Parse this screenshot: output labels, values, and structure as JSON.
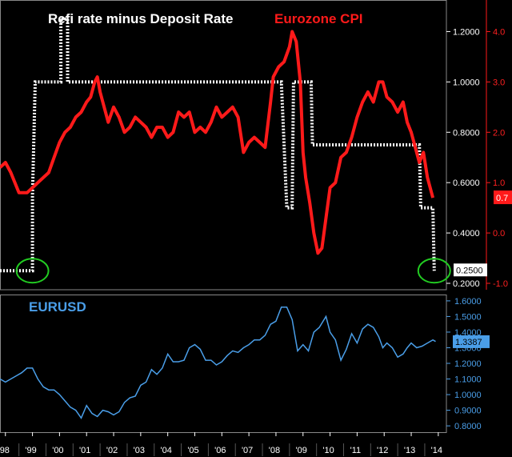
{
  "colors": {
    "background": "#000000",
    "refi": "#ffffff",
    "cpi": "#ff1a1a",
    "eurusd": "#4a9ee8",
    "highlight": "#22cc22",
    "frame": "#888888"
  },
  "chart_data": [
    {
      "type": "line",
      "title": "",
      "series": [
        {
          "name": "Refi rate minus Deposit Rate",
          "axis": "left",
          "style": "dotted",
          "points": [
            [
              1997.8,
              0.25
            ],
            [
              1999.0,
              0.25
            ],
            [
              1999.0,
              0.55
            ],
            [
              1999.1,
              1.0
            ],
            [
              1999.35,
              1.0
            ],
            [
              1999.35,
              1.0
            ],
            [
              2000.05,
              1.0
            ],
            [
              2000.05,
              1.25
            ],
            [
              2000.3,
              1.25
            ],
            [
              2000.3,
              1.0
            ],
            [
              2008.05,
              1.0
            ],
            [
              2008.2,
              1.0
            ],
            [
              2008.4,
              0.5
            ],
            [
              2008.6,
              0.5
            ],
            [
              2008.65,
              1.0
            ],
            [
              2008.95,
              1.0
            ],
            [
              2009.3,
              1.0
            ],
            [
              2009.35,
              0.75
            ],
            [
              2013.3,
              0.75
            ],
            [
              2013.35,
              0.5
            ],
            [
              2013.8,
              0.5
            ],
            [
              2013.85,
              0.25
            ]
          ]
        },
        {
          "name": "Eurozone CPI",
          "axis": "right",
          "style": "solid",
          "points": [
            [
              1997.8,
              1.3
            ],
            [
              1998.0,
              1.4
            ],
            [
              1998.2,
              1.2
            ],
            [
              1998.5,
              0.8
            ],
            [
              1998.8,
              0.8
            ],
            [
              1999.0,
              0.9
            ],
            [
              1999.2,
              1.0
            ],
            [
              1999.4,
              1.1
            ],
            [
              1999.6,
              1.2
            ],
            [
              1999.8,
              1.5
            ],
            [
              2000.0,
              1.8
            ],
            [
              2000.2,
              2.0
            ],
            [
              2000.4,
              2.1
            ],
            [
              2000.6,
              2.3
            ],
            [
              2000.8,
              2.4
            ],
            [
              2001.0,
              2.6
            ],
            [
              2001.15,
              2.7
            ],
            [
              2001.3,
              3.0
            ],
            [
              2001.4,
              3.1
            ],
            [
              2001.5,
              2.8
            ],
            [
              2001.6,
              2.6
            ],
            [
              2001.8,
              2.2
            ],
            [
              2002.0,
              2.5
            ],
            [
              2002.2,
              2.3
            ],
            [
              2002.4,
              2.0
            ],
            [
              2002.6,
              2.1
            ],
            [
              2002.8,
              2.3
            ],
            [
              2003.0,
              2.2
            ],
            [
              2003.2,
              2.1
            ],
            [
              2003.4,
              1.9
            ],
            [
              2003.6,
              2.1
            ],
            [
              2003.8,
              2.1
            ],
            [
              2004.0,
              1.9
            ],
            [
              2004.2,
              2.0
            ],
            [
              2004.4,
              2.4
            ],
            [
              2004.6,
              2.3
            ],
            [
              2004.8,
              2.4
            ],
            [
              2005.0,
              2.0
            ],
            [
              2005.2,
              2.1
            ],
            [
              2005.4,
              2.0
            ],
            [
              2005.6,
              2.2
            ],
            [
              2005.8,
              2.5
            ],
            [
              2006.0,
              2.3
            ],
            [
              2006.2,
              2.4
            ],
            [
              2006.4,
              2.5
            ],
            [
              2006.6,
              2.3
            ],
            [
              2006.8,
              1.6
            ],
            [
              2007.0,
              1.8
            ],
            [
              2007.2,
              1.9
            ],
            [
              2007.4,
              1.8
            ],
            [
              2007.6,
              1.7
            ],
            [
              2007.8,
              2.6
            ],
            [
              2007.9,
              3.1
            ],
            [
              2008.1,
              3.3
            ],
            [
              2008.3,
              3.4
            ],
            [
              2008.5,
              3.7
            ],
            [
              2008.6,
              4.0
            ],
            [
              2008.75,
              3.8
            ],
            [
              2008.9,
              3.0
            ],
            [
              2009.0,
              1.6
            ],
            [
              2009.1,
              1.1
            ],
            [
              2009.25,
              0.6
            ],
            [
              2009.4,
              0.0
            ],
            [
              2009.55,
              -0.4
            ],
            [
              2009.7,
              -0.3
            ],
            [
              2009.85,
              0.3
            ],
            [
              2010.0,
              0.9
            ],
            [
              2010.2,
              1.0
            ],
            [
              2010.4,
              1.5
            ],
            [
              2010.6,
              1.6
            ],
            [
              2010.8,
              1.9
            ],
            [
              2011.0,
              2.3
            ],
            [
              2011.2,
              2.6
            ],
            [
              2011.4,
              2.8
            ],
            [
              2011.6,
              2.6
            ],
            [
              2011.8,
              3.0
            ],
            [
              2011.95,
              3.0
            ],
            [
              2012.1,
              2.7
            ],
            [
              2012.3,
              2.6
            ],
            [
              2012.5,
              2.4
            ],
            [
              2012.7,
              2.6
            ],
            [
              2012.85,
              2.2
            ],
            [
              2013.0,
              2.0
            ],
            [
              2013.15,
              1.7
            ],
            [
              2013.3,
              1.4
            ],
            [
              2013.45,
              1.6
            ],
            [
              2013.6,
              1.1
            ],
            [
              2013.8,
              0.7
            ]
          ]
        },
        {
          "name": "EURUSD",
          "axis": "lower",
          "style": "solid",
          "points": [
            [
              1997.8,
              1.1
            ],
            [
              1998.0,
              1.08
            ],
            [
              1998.2,
              1.1
            ],
            [
              1998.4,
              1.12
            ],
            [
              1998.6,
              1.14
            ],
            [
              1998.8,
              1.17
            ],
            [
              1999.0,
              1.17
            ],
            [
              1999.2,
              1.1
            ],
            [
              1999.4,
              1.05
            ],
            [
              1999.6,
              1.03
            ],
            [
              1999.8,
              1.03
            ],
            [
              2000.0,
              1.0
            ],
            [
              2000.2,
              0.96
            ],
            [
              2000.4,
              0.92
            ],
            [
              2000.6,
              0.9
            ],
            [
              2000.8,
              0.85
            ],
            [
              2001.0,
              0.93
            ],
            [
              2001.2,
              0.88
            ],
            [
              2001.4,
              0.86
            ],
            [
              2001.6,
              0.9
            ],
            [
              2001.8,
              0.89
            ],
            [
              2002.0,
              0.87
            ],
            [
              2002.2,
              0.89
            ],
            [
              2002.4,
              0.95
            ],
            [
              2002.6,
              0.98
            ],
            [
              2002.8,
              0.99
            ],
            [
              2003.0,
              1.06
            ],
            [
              2003.2,
              1.08
            ],
            [
              2003.4,
              1.16
            ],
            [
              2003.6,
              1.13
            ],
            [
              2003.8,
              1.17
            ],
            [
              2004.0,
              1.26
            ],
            [
              2004.2,
              1.21
            ],
            [
              2004.4,
              1.21
            ],
            [
              2004.6,
              1.22
            ],
            [
              2004.8,
              1.3
            ],
            [
              2005.0,
              1.32
            ],
            [
              2005.2,
              1.29
            ],
            [
              2005.4,
              1.22
            ],
            [
              2005.6,
              1.22
            ],
            [
              2005.8,
              1.19
            ],
            [
              2006.0,
              1.21
            ],
            [
              2006.2,
              1.25
            ],
            [
              2006.4,
              1.28
            ],
            [
              2006.6,
              1.27
            ],
            [
              2006.8,
              1.3
            ],
            [
              2007.0,
              1.32
            ],
            [
              2007.2,
              1.35
            ],
            [
              2007.4,
              1.35
            ],
            [
              2007.6,
              1.38
            ],
            [
              2007.8,
              1.45
            ],
            [
              2008.0,
              1.47
            ],
            [
              2008.2,
              1.56
            ],
            [
              2008.4,
              1.56
            ],
            [
              2008.6,
              1.48
            ],
            [
              2008.8,
              1.28
            ],
            [
              2009.0,
              1.32
            ],
            [
              2009.2,
              1.28
            ],
            [
              2009.4,
              1.4
            ],
            [
              2009.6,
              1.43
            ],
            [
              2009.85,
              1.5
            ],
            [
              2010.0,
              1.4
            ],
            [
              2010.2,
              1.35
            ],
            [
              2010.4,
              1.22
            ],
            [
              2010.6,
              1.29
            ],
            [
              2010.8,
              1.39
            ],
            [
              2011.0,
              1.33
            ],
            [
              2011.2,
              1.42
            ],
            [
              2011.4,
              1.45
            ],
            [
              2011.6,
              1.43
            ],
            [
              2011.8,
              1.37
            ],
            [
              2011.95,
              1.3
            ],
            [
              2012.1,
              1.33
            ],
            [
              2012.3,
              1.3
            ],
            [
              2012.5,
              1.24
            ],
            [
              2012.7,
              1.26
            ],
            [
              2012.85,
              1.3
            ],
            [
              2013.0,
              1.33
            ],
            [
              2013.2,
              1.3
            ],
            [
              2013.4,
              1.31
            ],
            [
              2013.6,
              1.33
            ],
            [
              2013.8,
              1.35
            ],
            [
              2013.9,
              1.34
            ]
          ]
        }
      ],
      "axes": {
        "left_ylim": [
          0.2,
          1.3
        ],
        "left_ticks": [
          "0.2000",
          "0.4000",
          "0.6000",
          "0.8000",
          "1.0000",
          "1.2000"
        ],
        "right_ylim": [
          -1.0,
          4.5
        ],
        "right_ticks": [
          "-1.0",
          "0.0",
          "1.0",
          "2.0",
          "3.0",
          "4.0"
        ],
        "lower_ylim": [
          0.78,
          1.62
        ],
        "lower_ticks": [
          "0.8000",
          "0.9000",
          "1.0000",
          "1.1000",
          "1.2000",
          "1.3000",
          "1.4000",
          "1.5000",
          "1.6000"
        ],
        "xlim": [
          1997.8,
          2014.3
        ],
        "x_ticks": [
          "'98",
          "'99",
          "'00",
          "'01",
          "'02",
          "'03",
          "'04",
          "'05",
          "'06",
          "'07",
          "'08",
          "'09",
          "'10",
          "'11",
          "'12",
          "'13",
          "'14"
        ]
      },
      "last_values": {
        "refi": "0.2500",
        "cpi": "0.7",
        "eurusd": "1.3387"
      },
      "highlights": [
        {
          "x": 1999.0,
          "y": 0.25
        },
        {
          "x": 2013.85,
          "y": 0.25
        }
      ],
      "grid": false,
      "legend": "title-text"
    }
  ]
}
